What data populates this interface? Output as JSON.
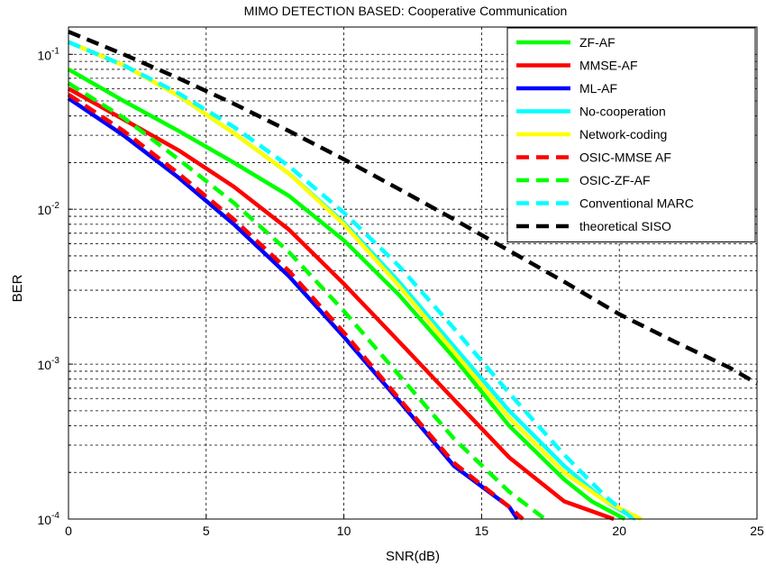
{
  "chart_data": {
    "type": "line",
    "title": "MIMO DETECTION BASED: Cooperative Communication",
    "xlabel": "SNR(dB)",
    "ylabel": "BER",
    "xlim": [
      0,
      25
    ],
    "ylim": [
      0.0001,
      0.15
    ],
    "yscale": "log",
    "grid": true,
    "legend_position": "top-right",
    "x_ticks": [
      0,
      5,
      10,
      15,
      20,
      25
    ],
    "y_ticks": [
      {
        "value": 0.1,
        "base": "10",
        "exp": "-1"
      },
      {
        "value": 0.01,
        "base": "10",
        "exp": "-2"
      },
      {
        "value": 0.001,
        "base": "10",
        "exp": "-3"
      },
      {
        "value": 0.0001,
        "base": "10",
        "exp": "-4"
      }
    ],
    "series": [
      {
        "name": "ZF-AF",
        "color": "#00ff00",
        "dash": false,
        "points": [
          [
            0,
            0.08
          ],
          [
            2,
            0.05
          ],
          [
            4,
            0.032
          ],
          [
            6,
            0.02
          ],
          [
            8,
            0.0122
          ],
          [
            10,
            0.0063
          ],
          [
            12,
            0.0028
          ],
          [
            14,
            0.0011
          ],
          [
            16,
            0.0004
          ],
          [
            18,
            0.00018
          ],
          [
            19,
            0.00013
          ],
          [
            20.2,
            0.0001
          ]
        ]
      },
      {
        "name": "MMSE-AF",
        "color": "#ff0000",
        "dash": false,
        "points": [
          [
            0,
            0.06
          ],
          [
            2,
            0.038
          ],
          [
            4,
            0.024
          ],
          [
            6,
            0.014
          ],
          [
            8,
            0.0074
          ],
          [
            10,
            0.0033
          ],
          [
            12,
            0.0014
          ],
          [
            14,
            0.00059
          ],
          [
            16,
            0.00025
          ],
          [
            18,
            0.00013
          ],
          [
            19.8,
            0.0001
          ]
        ]
      },
      {
        "name": "ML-AF",
        "color": "#0000ff",
        "dash": false,
        "points": [
          [
            0,
            0.052
          ],
          [
            2,
            0.03
          ],
          [
            4,
            0.016
          ],
          [
            6,
            0.008
          ],
          [
            8,
            0.0037
          ],
          [
            10,
            0.0015
          ],
          [
            12,
            0.00058
          ],
          [
            14,
            0.00022
          ],
          [
            16,
            0.00012
          ],
          [
            16.3,
            0.0001
          ]
        ]
      },
      {
        "name": "No-cooperation",
        "color": "#00ffff",
        "dash": false,
        "points": [
          [
            0,
            0.12
          ],
          [
            2,
            0.085
          ],
          [
            4,
            0.054
          ],
          [
            6,
            0.031
          ],
          [
            8,
            0.017
          ],
          [
            10,
            0.0082
          ],
          [
            12,
            0.0034
          ],
          [
            14,
            0.0013
          ],
          [
            16,
            0.0005
          ],
          [
            18,
            0.00022
          ],
          [
            19.5,
            0.00013
          ],
          [
            20.6,
            0.0001
          ]
        ]
      },
      {
        "name": "Network-coding",
        "color": "#ffff00",
        "dash": false,
        "points": [
          [
            0,
            0.12
          ],
          [
            2,
            0.085
          ],
          [
            4,
            0.054
          ],
          [
            6,
            0.031
          ],
          [
            8,
            0.017
          ],
          [
            10,
            0.008
          ],
          [
            12,
            0.0032
          ],
          [
            14,
            0.0012
          ],
          [
            16,
            0.00045
          ],
          [
            18,
            0.0002
          ],
          [
            19.5,
            0.00013
          ],
          [
            20.8,
            0.0001
          ]
        ]
      },
      {
        "name": "OSIC-MMSE AF",
        "color": "#ff0000",
        "dash": true,
        "points": [
          [
            0,
            0.055
          ],
          [
            2,
            0.032
          ],
          [
            4,
            0.017
          ],
          [
            6,
            0.0086
          ],
          [
            8,
            0.004
          ],
          [
            10,
            0.0016
          ],
          [
            12,
            0.0006
          ],
          [
            14,
            0.00023
          ],
          [
            16,
            0.00012
          ],
          [
            16.5,
            0.0001
          ]
        ]
      },
      {
        "name": "OSIC-ZF-AF",
        "color": "#00ff00",
        "dash": true,
        "points": [
          [
            0,
            0.065
          ],
          [
            2,
            0.039
          ],
          [
            4,
            0.021
          ],
          [
            6,
            0.011
          ],
          [
            8,
            0.0053
          ],
          [
            10,
            0.0022
          ],
          [
            12,
            0.00085
          ],
          [
            14,
            0.00033
          ],
          [
            16,
            0.00015
          ],
          [
            17.3,
            0.0001
          ]
        ]
      },
      {
        "name": "Conventional MARC",
        "color": "#00ffff",
        "dash": true,
        "points": [
          [
            0,
            0.12
          ],
          [
            2,
            0.085
          ],
          [
            4,
            0.056
          ],
          [
            6,
            0.034
          ],
          [
            8,
            0.019
          ],
          [
            10,
            0.0095
          ],
          [
            12,
            0.0043
          ],
          [
            14,
            0.0017
          ],
          [
            16,
            0.00065
          ],
          [
            18,
            0.00026
          ],
          [
            19.5,
            0.00014
          ],
          [
            20.5,
            0.0001
          ]
        ]
      },
      {
        "name": "theoretical SISO",
        "color": "#000000",
        "dash": true,
        "points": [
          [
            0,
            0.14
          ],
          [
            2,
            0.1
          ],
          [
            4,
            0.07
          ],
          [
            6,
            0.048
          ],
          [
            8,
            0.032
          ],
          [
            10,
            0.021
          ],
          [
            12,
            0.0135
          ],
          [
            14,
            0.0086
          ],
          [
            16,
            0.0054
          ],
          [
            18,
            0.0034
          ],
          [
            20,
            0.0021
          ],
          [
            22,
            0.0014
          ],
          [
            24,
            0.00095
          ],
          [
            25,
            0.00075
          ]
        ]
      }
    ]
  }
}
